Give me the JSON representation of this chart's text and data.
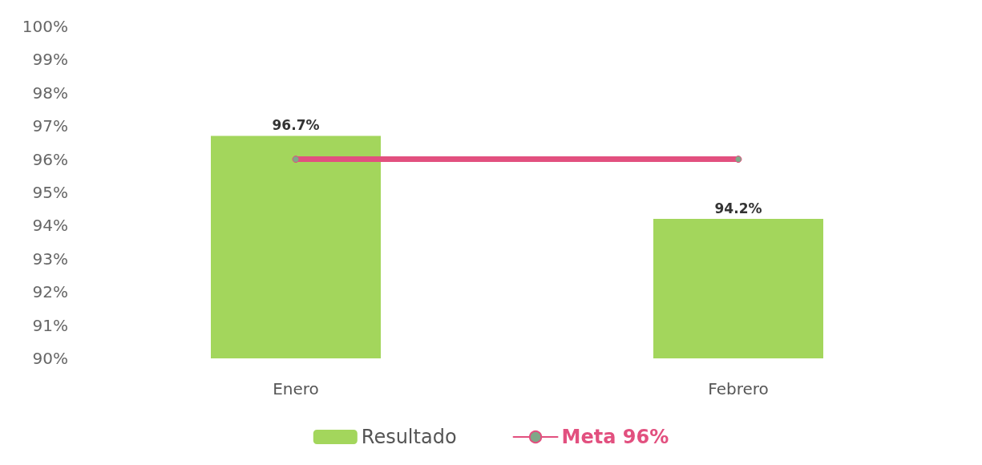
{
  "chart_data": {
    "type": "bar",
    "categories": [
      "Enero",
      "Febrero"
    ],
    "series": [
      {
        "name": "Resultado",
        "color": "#a3d65c",
        "values": [
          96.7,
          94.2
        ],
        "value_labels": [
          "96.7%",
          "94.2%"
        ]
      },
      {
        "name": "Meta 96%",
        "type": "line",
        "color": "#e2507f",
        "values": [
          96,
          96
        ],
        "marker": "circle"
      }
    ],
    "ylim": [
      90,
      100
    ],
    "yticks": [
      {
        "value": 90,
        "label": "90%"
      },
      {
        "value": 91,
        "label": "91%"
      },
      {
        "value": 92,
        "label": "92%"
      },
      {
        "value": 93,
        "label": "93%"
      },
      {
        "value": 94,
        "label": "94%"
      },
      {
        "value": 95,
        "label": "95%"
      },
      {
        "value": 96,
        "label": "96%"
      },
      {
        "value": 97,
        "label": "97%"
      },
      {
        "value": 98,
        "label": "98%"
      },
      {
        "value": 99,
        "label": "99%"
      },
      {
        "value": 100,
        "label": "100%"
      }
    ],
    "grid": false,
    "legend": "bottom"
  }
}
